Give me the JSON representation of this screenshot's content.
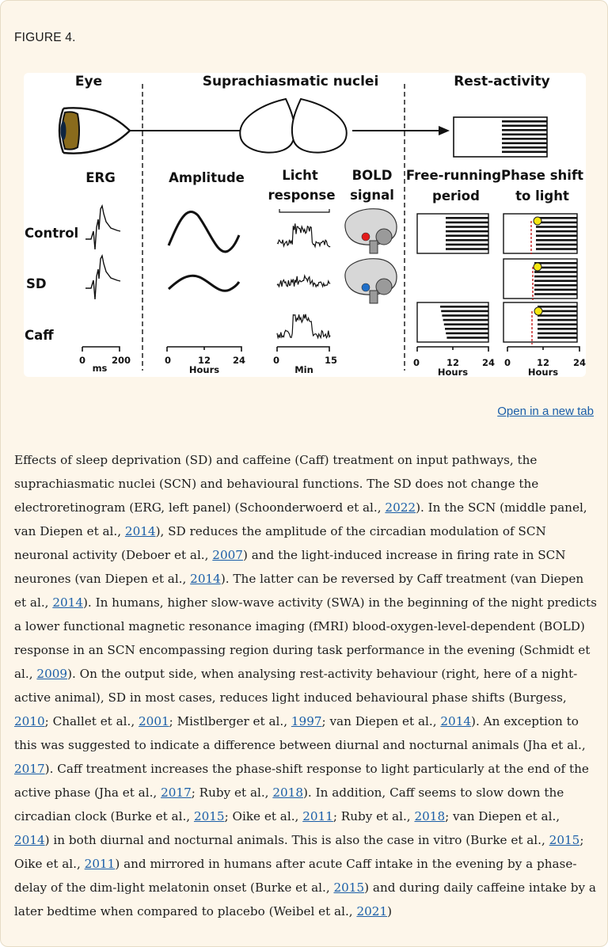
{
  "figure": {
    "label": "FIGURE 4.",
    "open_link": "Open in a new tab",
    "headers": {
      "eye": "Eye",
      "scn": "Suprachiasmatic nuclei",
      "rest": "Rest-activity"
    },
    "columns": {
      "erg": "ERG",
      "amplitude": "Amplitude",
      "licht_1": "Licht",
      "licht_2": "response",
      "bold_1": "BOLD",
      "bold_2": "signal",
      "free_1": "Free-running",
      "free_2": "period",
      "phase_1": "Phase shift",
      "phase_2": "to light"
    },
    "rows": {
      "control": "Control",
      "sd": "SD",
      "caff": "Caff"
    },
    "axes": {
      "erg": {
        "ticks": [
          "0",
          "200"
        ],
        "unit": "ms"
      },
      "amplitude": {
        "ticks": [
          "0",
          "12",
          "24"
        ],
        "unit": "Hours"
      },
      "licht": {
        "ticks": [
          "0",
          "15"
        ],
        "unit": "Min"
      },
      "free": {
        "ticks": [
          "0",
          "12",
          "24"
        ],
        "unit": "Hours"
      },
      "phase": {
        "ticks": [
          "0",
          "12",
          "24"
        ],
        "unit": "Hours"
      }
    },
    "marker_colors": {
      "control_dot": "#e31b1b",
      "sd_dot": "#1f6fc9",
      "light_pulse": "#f5e611",
      "phase_line": "#c81e1e"
    }
  },
  "caption": {
    "segments": [
      {
        "t": "Effects of sleep deprivation (SD) and caffeine (Caff) treatment on input pathways, the suprachiasmatic nuclei (SCN) and behavioural functions. The SD does not change the electroretinogram (ERG, left panel) (Schoonderwoerd et al., "
      },
      {
        "t": "2022",
        "link": true
      },
      {
        "t": "). In the SCN (middle panel, van Diepen et al., "
      },
      {
        "t": "2014",
        "link": true
      },
      {
        "t": "), SD reduces the amplitude of the circadian modulation of SCN neuronal activity (Deboer et al., "
      },
      {
        "t": "2007",
        "link": true
      },
      {
        "t": ") and the light-induced increase in firing rate in SCN neurones (van Diepen et al., "
      },
      {
        "t": "2014",
        "link": true
      },
      {
        "t": "). The latter can be reversed by Caff treatment (van Diepen et al., "
      },
      {
        "t": "2014",
        "link": true
      },
      {
        "t": "). In humans, higher slow-wave activity (SWA) in the beginning of the night predicts a lower functional magnetic resonance imaging (fMRI) blood-oxygen-level-dependent (BOLD) response in an SCN encompassing region during task performance in the evening (Schmidt et al., "
      },
      {
        "t": "2009",
        "link": true
      },
      {
        "t": "). On the output side, when analysing rest-activity behaviour (right, here of a night-active animal), SD in most cases, reduces light induced behavioural phase shifts (Burgess, "
      },
      {
        "t": "2010",
        "link": true
      },
      {
        "t": "; Challet et al., "
      },
      {
        "t": "2001",
        "link": true
      },
      {
        "t": "; Mistlberger et al., "
      },
      {
        "t": "1997",
        "link": true
      },
      {
        "t": "; van Diepen et al., "
      },
      {
        "t": "2014",
        "link": true
      },
      {
        "t": "). An exception to this was suggested to indicate a difference between diurnal and nocturnal animals (Jha et al., "
      },
      {
        "t": "2017",
        "link": true
      },
      {
        "t": "). Caff treatment increases the phase-shift response to light particularly at the end of the active phase (Jha et al., "
      },
      {
        "t": "2017",
        "link": true
      },
      {
        "t": "; Ruby et al., "
      },
      {
        "t": "2018",
        "link": true
      },
      {
        "t": "). In addition, Caff seems to slow down the circadian clock (Burke et al., "
      },
      {
        "t": "2015",
        "link": true
      },
      {
        "t": "; Oike et al., "
      },
      {
        "t": "2011",
        "link": true
      },
      {
        "t": "; Ruby et al., "
      },
      {
        "t": "2018",
        "link": true
      },
      {
        "t": "; van Diepen et al., "
      },
      {
        "t": "2014",
        "link": true
      },
      {
        "t": ") in both diurnal and nocturnal animals. This is also the case in vitro (Burke et al., "
      },
      {
        "t": "2015",
        "link": true
      },
      {
        "t": "; Oike et al., "
      },
      {
        "t": "2011",
        "link": true
      },
      {
        "t": ") and mirrored in humans after acute Caff intake in the evening by a phase-delay of the dim-light melatonin onset (Burke et al., "
      },
      {
        "t": "2015",
        "link": true
      },
      {
        "t": ") and during daily caffeine intake by a later bedtime when compared to placebo (Weibel et al., "
      },
      {
        "t": "2021",
        "link": true
      },
      {
        "t": ")"
      }
    ]
  }
}
